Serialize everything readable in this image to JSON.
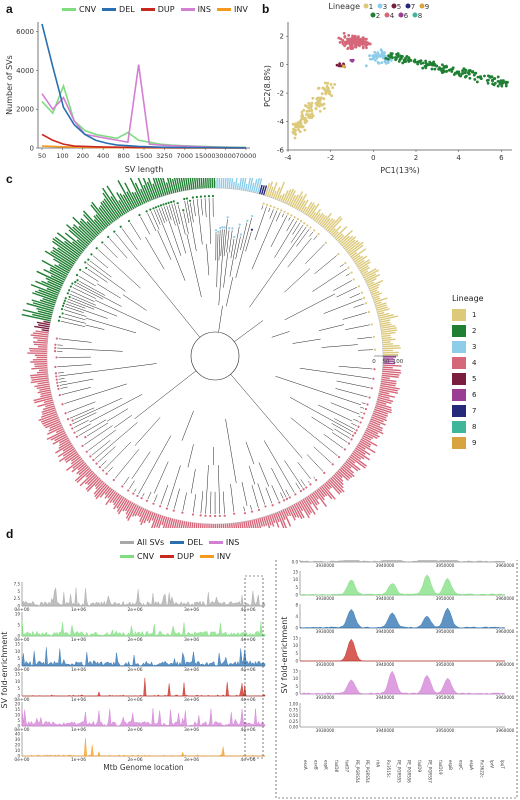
{
  "panels": {
    "a": {
      "label": "a"
    },
    "b": {
      "label": "b"
    },
    "c": {
      "label": "c"
    },
    "d": {
      "label": "d"
    }
  },
  "colors": {
    "CNV": "#7fdd7f",
    "DEL": "#2a6fb0",
    "DUP": "#c8281e",
    "INS": "#d27fd4",
    "INV": "#f59a1f",
    "All SVs": "#a8a8a8",
    "lineage": {
      "1": "#dcc97a",
      "2": "#1f7f32",
      "3": "#8dcde9",
      "4": "#d6677a",
      "5": "#7a1d3e",
      "6": "#9c3d94",
      "7": "#26287a",
      "8": "#3fb59a",
      "9": "#d8a440"
    }
  },
  "chart_data": [
    {
      "id": "a",
      "type": "line",
      "xlabel": "SV length",
      "ylabel": "Number of SVs",
      "x_ticks": [
        "50",
        "100",
        "200",
        "400",
        "800",
        "1500",
        "3250",
        "7000",
        "15000",
        "30000",
        "70000"
      ],
      "y_ticks": [
        "0",
        "2000",
        "4000",
        "6000"
      ],
      "ylim": [
        0,
        6500
      ],
      "legend": [
        "CNV",
        "DEL",
        "DUP",
        "INS",
        "INV"
      ],
      "series": [
        {
          "name": "DEL",
          "values": [
            6400,
            4200,
            2100,
            1200,
            700,
            400,
            250,
            150,
            120,
            80,
            60,
            40,
            30,
            30,
            25,
            20,
            20,
            15,
            12,
            10
          ]
        },
        {
          "name": "INS",
          "values": [
            2800,
            2000,
            2600,
            1400,
            700,
            600,
            500,
            400,
            300,
            4300,
            200,
            150,
            120,
            100,
            80,
            60,
            40,
            30,
            20,
            15
          ]
        },
        {
          "name": "CNV",
          "values": [
            2400,
            1800,
            3200,
            1400,
            900,
            700,
            600,
            500,
            800,
            400,
            300,
            200,
            150,
            120,
            100,
            80,
            60,
            50,
            40,
            30
          ]
        },
        {
          "name": "DUP",
          "values": [
            700,
            400,
            200,
            100,
            80,
            60,
            50,
            40,
            30,
            20,
            20,
            15,
            10,
            10,
            10,
            8,
            6,
            5,
            4,
            3
          ]
        },
        {
          "name": "INV",
          "values": [
            100,
            80,
            60,
            50,
            40,
            30,
            25,
            20,
            15,
            12,
            10,
            8,
            6,
            5,
            4,
            3,
            2,
            2,
            1,
            1
          ]
        }
      ]
    },
    {
      "id": "b",
      "type": "scatter",
      "title": "Lineage",
      "xlabel": "PC1(13%)",
      "ylabel": "PC2(8.8%)",
      "x_ticks": [
        "-4",
        "-2",
        "0",
        "2",
        "4",
        "6"
      ],
      "y_ticks": [
        "-6",
        "-4",
        "-2",
        "0",
        "2"
      ],
      "xlim": [
        -4,
        6.5
      ],
      "ylim": [
        -6,
        3
      ],
      "legend_top": [
        "1",
        "3",
        "5",
        "7",
        "9"
      ],
      "legend_bottom": [
        "2",
        "4",
        "6",
        "8"
      ],
      "clusters": [
        {
          "lineage": "4",
          "cx": -0.9,
          "cy": 1.6,
          "sx": 0.55,
          "sy": 0.35,
          "n": 140
        },
        {
          "lineage": "3",
          "cx": 0.3,
          "cy": 0.6,
          "sx": 0.5,
          "sy": 0.4,
          "n": 50
        },
        {
          "lineage": "2",
          "cx": 3.5,
          "cy": -0.4,
          "sx": 1.6,
          "sy": 0.45,
          "n": 170
        },
        {
          "lineage": "1",
          "cx": -3.2,
          "cy": -3.6,
          "sx": 0.35,
          "sy": 0.9,
          "n": 120
        },
        {
          "lineage": "5",
          "cx": -1.5,
          "cy": 0.0,
          "sx": 0.15,
          "sy": 0.15,
          "n": 8
        },
        {
          "lineage": "6",
          "cx": -1.0,
          "cy": 0.2,
          "sx": 0.1,
          "sy": 0.1,
          "n": 4
        },
        {
          "lineage": "9",
          "cx": -1.4,
          "cy": -0.1,
          "sx": 0.1,
          "sy": 0.1,
          "n": 3
        }
      ]
    },
    {
      "id": "c",
      "type": "other",
      "legend_title": "Lineage",
      "legend": [
        "1",
        "2",
        "3",
        "4",
        "5",
        "6",
        "7",
        "8",
        "9"
      ],
      "scale_labels": [
        "0",
        "50",
        "100"
      ],
      "ring_sectors": [
        {
          "lineage": "3",
          "start": 0,
          "end": 15
        },
        {
          "lineage": "7",
          "start": 15,
          "end": 17
        },
        {
          "lineage": "1",
          "start": 17,
          "end": 90
        },
        {
          "lineage": "6",
          "start": 90,
          "end": 93
        },
        {
          "lineage": "4",
          "start": 93,
          "end": 278
        },
        {
          "lineage": "5",
          "start": 278,
          "end": 282
        },
        {
          "lineage": "2",
          "start": 282,
          "end": 360
        }
      ]
    },
    {
      "id": "d",
      "type": "area",
      "ylabel": "SV fold-enrichment",
      "xlabel": "Mtb Genome location",
      "x_ticks": [
        "0e+00",
        "1e+06",
        "2e+06",
        "3e+06",
        "4e+06"
      ],
      "legend": [
        "All SVs",
        "DEL",
        "INS",
        "CNV",
        "DUP",
        "INV"
      ],
      "track_order": [
        "All SVs",
        "CNV",
        "DEL",
        "DUP",
        "INS",
        "INV"
      ],
      "track_y_ticks": [
        [
          "0",
          "2.5",
          "5",
          "7.5"
        ],
        [
          "0",
          "5",
          "10"
        ],
        [
          "0",
          "5",
          "10",
          "15"
        ],
        [
          "0",
          "5",
          "10",
          "15"
        ],
        [
          "0",
          "5",
          "10",
          "15",
          "20"
        ],
        [
          "0",
          "10",
          "20",
          "30",
          "40"
        ]
      ],
      "zoom_x_ticks": [
        "3930000",
        "3940000",
        "3950000",
        "3960000"
      ],
      "zoom_y_ticks": [
        [
          "0.0",
          "2.5",
          "5.0",
          "7.5"
        ],
        [
          "0",
          "5",
          "10",
          "15"
        ],
        [
          "0",
          "4",
          "8"
        ],
        [
          "0",
          "5",
          "10",
          "15"
        ],
        [
          "0",
          "5",
          "10",
          "15"
        ],
        [
          "0.00",
          "0.25",
          "0.50",
          "0.75",
          "1.00"
        ]
      ],
      "gene_labels": [
        "esxA",
        "esxB",
        "espK",
        "fadD8",
        "fadD7",
        "PE_PGRS54",
        "PE_PGRS54",
        "rlrA",
        "Rv3515c",
        "PE_PGRS55",
        "PE_PGRS56",
        "fadD9",
        "PE_PGRS57",
        "fadD19",
        "espB",
        "espC",
        "espA",
        "Rv3622c",
        "lprV",
        "lpqT"
      ]
    }
  ]
}
